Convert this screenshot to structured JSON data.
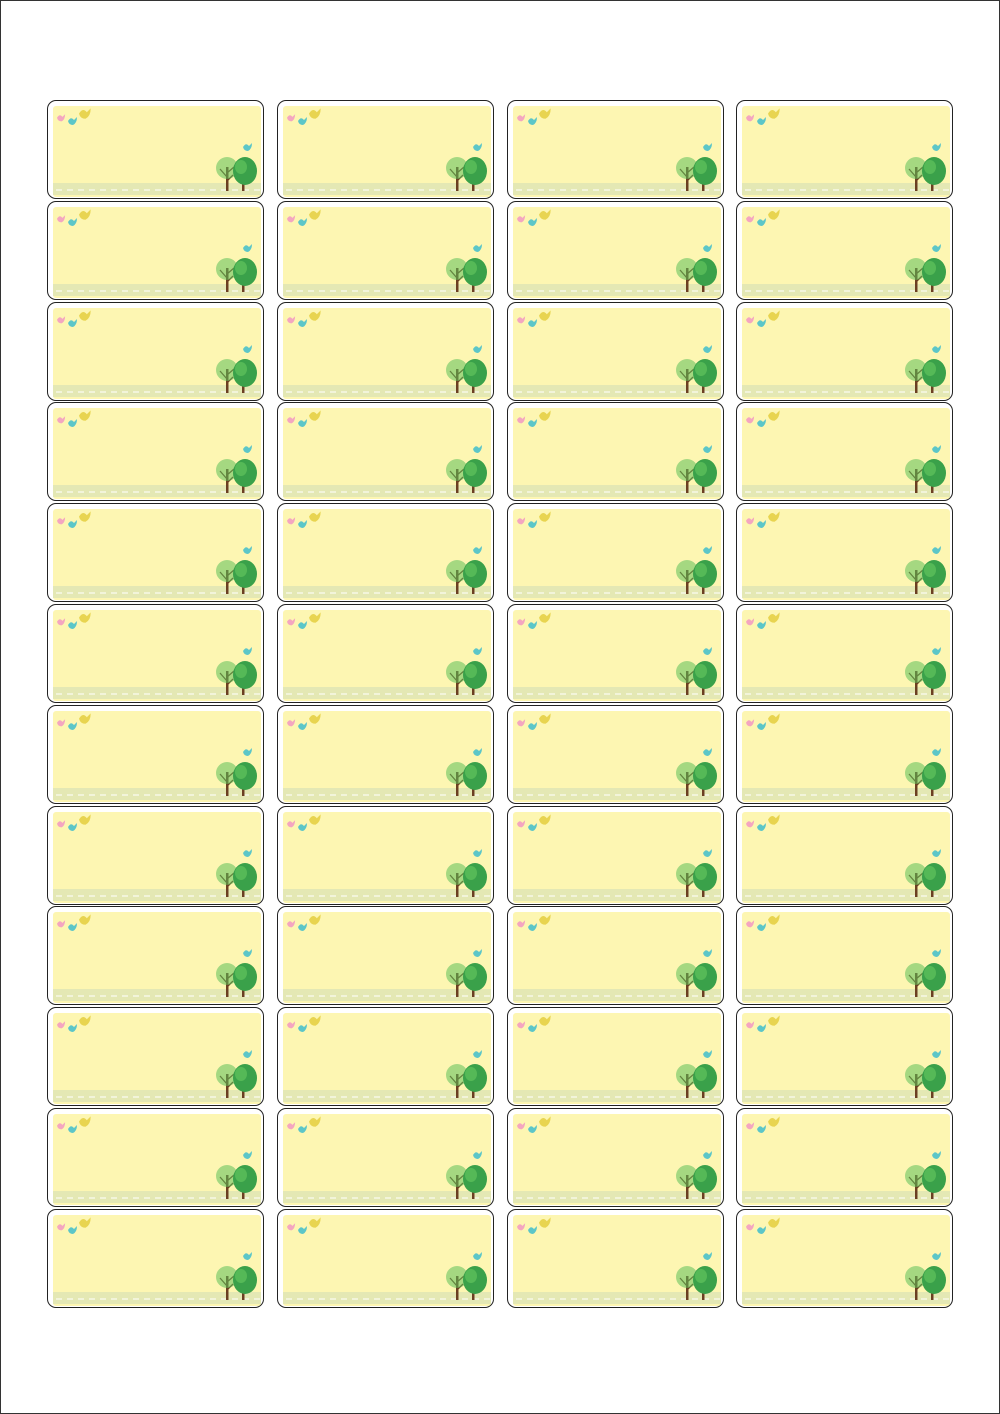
{
  "sheet": {
    "columns": 4,
    "rows": 12,
    "colors": {
      "background": "#fdf6b2",
      "ground": "#e4e8b4",
      "border": "#222222",
      "bird_pink": "#f4a6c0",
      "bird_teal": "#5cc6c8",
      "bird_yellow": "#e8d450",
      "tree_light": "#5cbf5a",
      "tree_dark": "#3aa14a",
      "trunk": "#6b3f22"
    },
    "decoration": [
      "bird-icon",
      "tree-icon"
    ]
  }
}
